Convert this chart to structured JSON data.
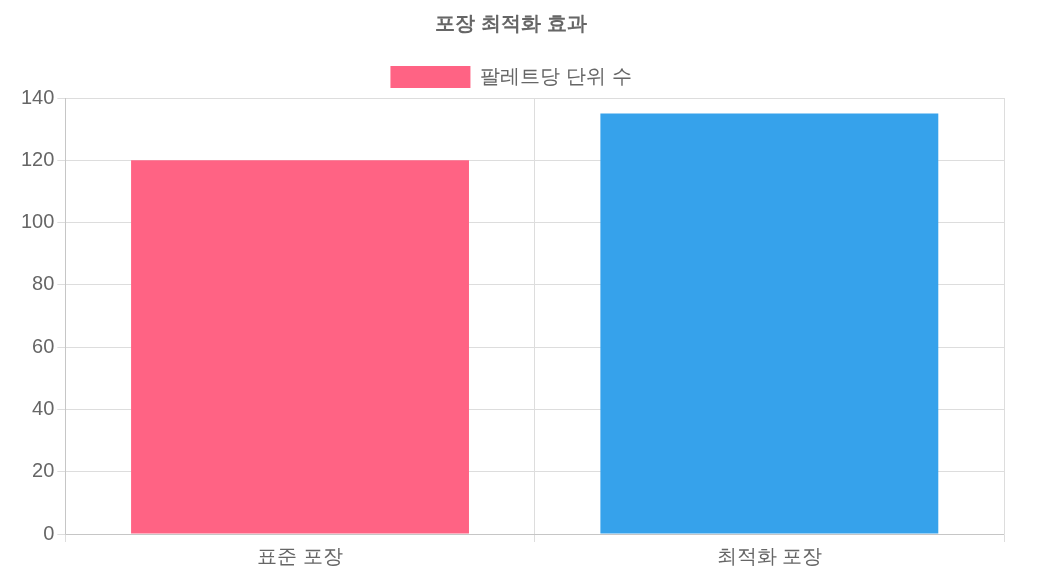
{
  "chart_data": {
    "type": "bar",
    "title": "포장 최적화 효과",
    "categories": [
      "표준 포장",
      "최적화 포장"
    ],
    "series": [
      {
        "name": "팔레트당 단위 수",
        "color": "#ff6384",
        "colors": [
          "#ff6384",
          "#36a2eb"
        ],
        "values": [
          120,
          135
        ]
      }
    ],
    "ylim": [
      0,
      140
    ],
    "yticks": [
      0,
      20,
      40,
      60,
      80,
      100,
      120,
      140
    ],
    "grid": true,
    "legend": "top"
  }
}
